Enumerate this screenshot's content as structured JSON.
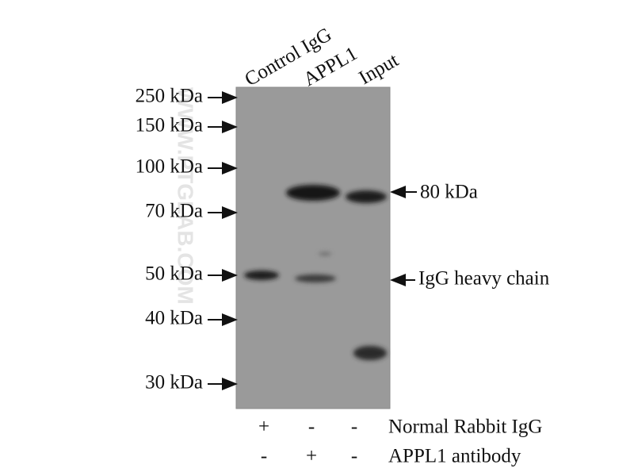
{
  "lanes": [
    "Control IgG",
    "APPL1",
    "Input"
  ],
  "markers": [
    "250 kDa",
    "150 kDa",
    "100 kDa",
    "70 kDa",
    "50 kDa",
    "40 kDa",
    "30 kDa"
  ],
  "annotations": [
    "80 kDa",
    "IgG heavy chain"
  ],
  "conditions": [
    {
      "label": "Normal Rabbit IgG",
      "signs": [
        "+",
        "-",
        "-"
      ]
    },
    {
      "label": "APPL1 antibody",
      "signs": [
        "-",
        "+",
        "-"
      ]
    }
  ],
  "watermark": "WWW.PTGLAB.COM"
}
